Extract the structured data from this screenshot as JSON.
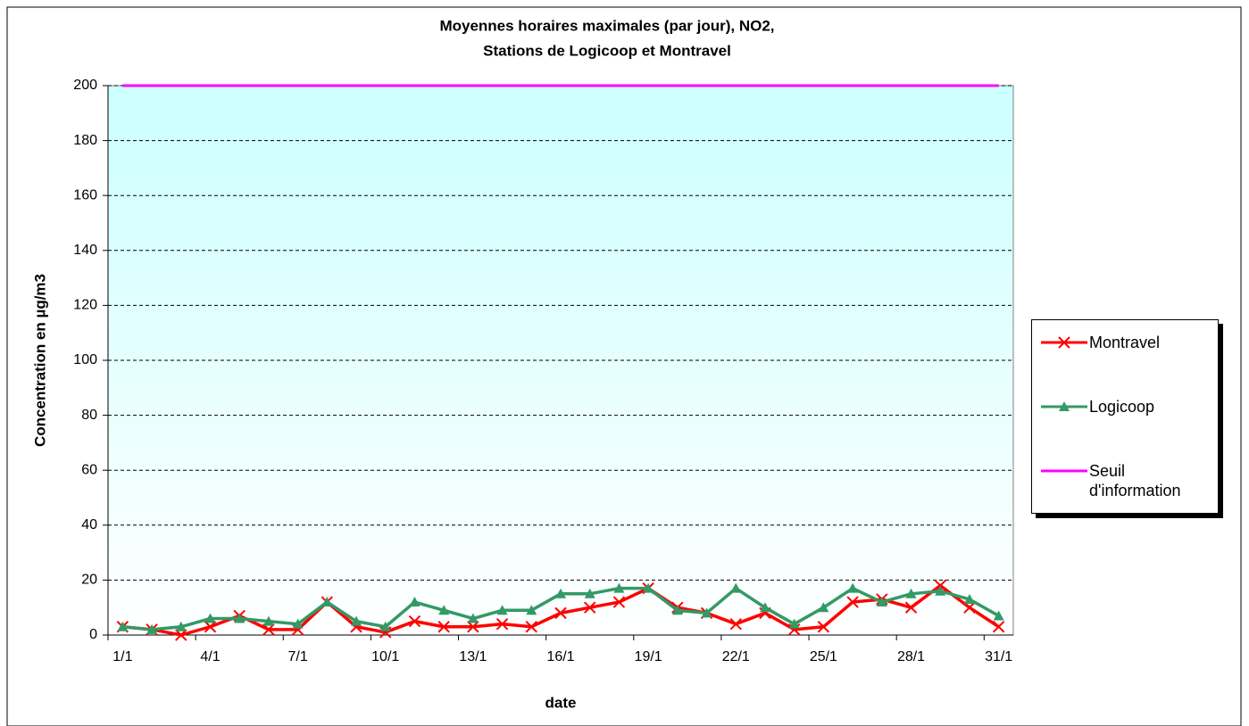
{
  "chart_data": {
    "type": "line",
    "title": [
      "Moyennes horaires maximales (par jour), NO2,",
      "Stations de Logicoop et Montravel"
    ],
    "x_label": "date",
    "y_label": "Concentration en µg/m3",
    "categories": [
      "1/1",
      null,
      null,
      "4/1",
      null,
      null,
      "7/1",
      null,
      null,
      "10/1",
      null,
      null,
      "13/1",
      null,
      null,
      "16/1",
      null,
      null,
      "19/1",
      null,
      null,
      "22/1",
      null,
      null,
      "25/1",
      null,
      null,
      "28/1",
      null,
      null,
      "31/1"
    ],
    "series": [
      {
        "name": "Montravel",
        "color": "#ff0000",
        "marker": "x",
        "values": [
          3,
          2,
          0,
          3,
          7,
          2,
          2,
          12,
          3,
          1,
          5,
          3,
          3,
          4,
          3,
          8,
          10,
          12,
          17,
          10,
          8,
          4,
          8,
          2,
          3,
          12,
          13,
          10,
          18,
          10,
          3
        ]
      },
      {
        "name": "Logicoop",
        "color": "#339966",
        "marker": "triangle",
        "values": [
          3,
          2,
          3,
          6,
          6,
          5,
          4,
          12,
          5,
          3,
          12,
          9,
          6,
          9,
          9,
          15,
          15,
          17,
          17,
          9,
          8,
          17,
          10,
          4,
          10,
          17,
          12,
          15,
          16,
          13,
          7
        ]
      },
      {
        "name": "Seuil d'information",
        "color": "#ff00ff",
        "marker": "none",
        "values": [
          200,
          200,
          200,
          200,
          200,
          200,
          200,
          200,
          200,
          200,
          200,
          200,
          200,
          200,
          200,
          200,
          200,
          200,
          200,
          200,
          200,
          200,
          200,
          200,
          200,
          200,
          200,
          200,
          200,
          200,
          200
        ]
      }
    ],
    "ylim": [
      0,
      200
    ],
    "yticks": [
      0,
      20,
      40,
      60,
      80,
      100,
      120,
      140,
      160,
      180,
      200
    ],
    "grid": true,
    "legend": "right"
  }
}
